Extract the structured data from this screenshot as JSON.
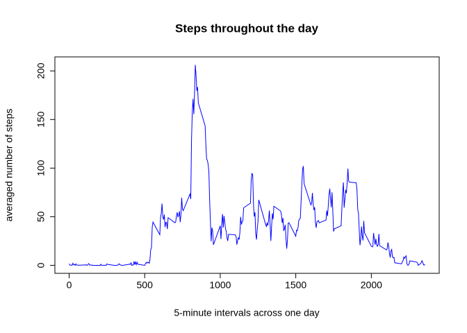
{
  "chart_data": {
    "type": "line",
    "title": "Steps throughout the day",
    "x_label": "5-minute intervals across one day",
    "y_label": "averaged number of steps",
    "color": "#0000ff",
    "x": [
      0,
      5,
      10,
      15,
      20,
      25,
      30,
      35,
      40,
      45,
      50,
      55,
      100,
      105,
      110,
      115,
      120,
      125,
      130,
      135,
      140,
      145,
      150,
      155,
      200,
      205,
      210,
      215,
      220,
      225,
      230,
      235,
      240,
      245,
      250,
      255,
      300,
      305,
      310,
      315,
      320,
      325,
      330,
      335,
      340,
      345,
      350,
      355,
      400,
      405,
      410,
      415,
      420,
      425,
      430,
      435,
      440,
      445,
      450,
      455,
      500,
      505,
      510,
      515,
      520,
      525,
      530,
      535,
      540,
      545,
      550,
      555,
      600,
      605,
      610,
      615,
      620,
      625,
      630,
      635,
      640,
      645,
      650,
      655,
      700,
      705,
      710,
      715,
      720,
      725,
      730,
      735,
      740,
      745,
      750,
      755,
      800,
      805,
      810,
      815,
      820,
      825,
      830,
      835,
      840,
      845,
      850,
      855,
      900,
      905,
      910,
      915,
      920,
      925,
      930,
      935,
      940,
      945,
      950,
      955,
      1000,
      1005,
      1010,
      1015,
      1020,
      1025,
      1030,
      1035,
      1040,
      1045,
      1050,
      1055,
      1100,
      1105,
      1110,
      1115,
      1120,
      1125,
      1130,
      1135,
      1140,
      1145,
      1150,
      1155,
      1200,
      1205,
      1210,
      1215,
      1220,
      1225,
      1230,
      1235,
      1240,
      1245,
      1250,
      1255,
      1300,
      1305,
      1310,
      1315,
      1320,
      1325,
      1330,
      1335,
      1340,
      1345,
      1350,
      1355,
      1400,
      1405,
      1410,
      1415,
      1420,
      1425,
      1430,
      1435,
      1440,
      1445,
      1450,
      1455,
      1500,
      1505,
      1510,
      1515,
      1520,
      1525,
      1530,
      1535,
      1540,
      1545,
      1550,
      1555,
      1600,
      1605,
      1610,
      1615,
      1620,
      1625,
      1630,
      1635,
      1640,
      1645,
      1650,
      1655,
      1700,
      1705,
      1710,
      1715,
      1720,
      1725,
      1730,
      1735,
      1740,
      1745,
      1750,
      1755,
      1800,
      1805,
      1810,
      1815,
      1820,
      1825,
      1830,
      1835,
      1840,
      1845,
      1850,
      1855,
      1900,
      1905,
      1910,
      1915,
      1920,
      1925,
      1930,
      1935,
      1940,
      1945,
      1950,
      1955,
      2000,
      2005,
      2010,
      2015,
      2020,
      2025,
      2030,
      2035,
      2040,
      2045,
      2050,
      2055,
      2100,
      2105,
      2110,
      2115,
      2120,
      2125,
      2130,
      2135,
      2140,
      2145,
      2150,
      2155,
      2200,
      2205,
      2210,
      2215,
      2220,
      2225,
      2230,
      2235,
      2240,
      2245,
      2250,
      2255,
      2300,
      2305,
      2310,
      2315,
      2320,
      2325,
      2330,
      2335,
      2340,
      2345,
      2350,
      2355
    ],
    "values": [
      1.7,
      0.3,
      0.1,
      0.2,
      0.1,
      2.1,
      0.5,
      0.9,
      0,
      1.5,
      0.3,
      0.1,
      0.3,
      0.7,
      0.2,
      0.3,
      0,
      1.1,
      1.8,
      0.2,
      0.2,
      0.4,
      0.3,
      0,
      0,
      0,
      1.1,
      0,
      0,
      0.1,
      0,
      0.2,
      0,
      0,
      1.5,
      0.9,
      0,
      0,
      0,
      0,
      0.2,
      0.6,
      1.6,
      0.6,
      0.5,
      0.1,
      0,
      0,
      1.2,
      0.9,
      2.6,
      0,
      0.3,
      0.4,
      4.1,
      0.7,
      3.5,
      0.8,
      3.1,
      1.1,
      0,
      1.6,
      3,
      2.2,
      3.3,
      3,
      2.1,
      6.1,
      16,
      18.3,
      39.5,
      44.5,
      31.5,
      49.3,
      53.8,
      63.5,
      50,
      47.1,
      52.2,
      39.3,
      44,
      44.2,
      37.4,
      49,
      43.8,
      44.4,
      50.5,
      54.5,
      49.9,
      51,
      55.7,
      44.3,
      52.3,
      69.5,
      57.8,
      56.2,
      73.4,
      68.2,
      129.4,
      157.5,
      171.2,
      155.4,
      177.3,
      206.2,
      195.9,
      179.6,
      183.4,
      167,
      143.5,
      124,
      109.1,
      108.1,
      103.7,
      95.9,
      66.2,
      45.2,
      24.8,
      38.8,
      35,
      21.1,
      40.6,
      27,
      42.4,
      52.7,
      38.9,
      50.8,
      44.3,
      37.4,
      34.7,
      28.3,
      25.1,
      31.9,
      31.4,
      29.7,
      21.3,
      25.5,
      28.4,
      26.5,
      33.4,
      49.9,
      42,
      44.6,
      46,
      59.2,
      63.9,
      87.7,
      94.8,
      92.8,
      63.4,
      50.2,
      54.5,
      32.4,
      26.5,
      37.7,
      45.1,
      67.3,
      42.3,
      39.9,
      43.3,
      41,
      46.2,
      56.4,
      42.8,
      25.1,
      40,
      53.5,
      47.4,
      60.8,
      55.8,
      52,
      43.6,
      48.7,
      35.5,
      37.5,
      41.8,
      27.5,
      17.1,
      26.1,
      43.6,
      43.8,
      30,
      36.1,
      35.5,
      38.8,
      46,
      47.8,
      48.1,
      65.3,
      82.9,
      98.7,
      102.1,
      84,
      62.1,
      64.1,
      74.5,
      63.2,
      56.9,
      59.8,
      43.9,
      38.6,
      44.7,
      45.5,
      46.2,
      43.7,
      46.6,
      56.3,
      50.7,
      61.2,
      72.7,
      78.9,
      68.9,
      59.7,
      75.1,
      56.5,
      34.8,
      37.5,
      40.7,
      58,
      74.7,
      85.3,
      59.3,
      67.8,
      77.7,
      74.2,
      85.3,
      99.5,
      86.6,
      85.6,
      84.9,
      77.8,
      58,
      53.4,
      36.3,
      20.7,
      27.4,
      40,
      30.2,
      25.5,
      45.7,
      33.5,
      19.6,
      19,
      19.3,
      33.3,
      26.8,
      21.2,
      27.3,
      21.3,
      19.5,
      21.3,
      32.3,
      20.2,
      15.9,
      17.2,
      23.5,
      19.2,
      12.5,
      8,
      14.7,
      16.3,
      8.7,
      7.8,
      8.1,
      2.6,
      1.5,
      3.7,
      4.8,
      8.5,
      7.1,
      8.7,
      9.8,
      2.2,
      0.3,
      0.1,
      1.6,
      4.6,
      3.3,
      2.8,
      0,
      0.8,
      1,
      1.6,
      2.6,
      4.7,
      3.3,
      0.6,
      0.2,
      1.1
    ],
    "xlim": [
      -94.2,
      2449.2
    ],
    "ylim": [
      -8.25,
      214.42
    ],
    "xticks": [
      0,
      500,
      1000,
      1500,
      2000
    ],
    "yticks": [
      0,
      50,
      100,
      150,
      200
    ]
  }
}
